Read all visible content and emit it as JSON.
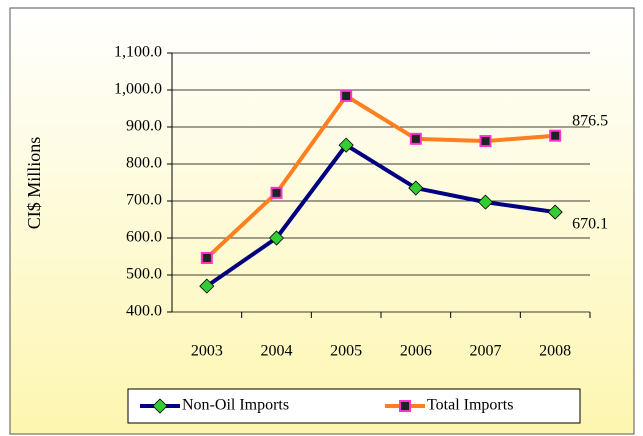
{
  "chart_data": {
    "type": "line",
    "ylabel": "CI$ Millions",
    "categories": [
      "2003",
      "2004",
      "2005",
      "2006",
      "2007",
      "2008"
    ],
    "series": [
      {
        "name": "Non-Oil Imports",
        "color": "#000080",
        "marker_color": "#33cc33",
        "marker": "diamond",
        "values": [
          470,
          600,
          851,
          735,
          697,
          670.1
        ],
        "value_labels": [
          null,
          null,
          null,
          null,
          null,
          "670.1"
        ]
      },
      {
        "name": "Total Imports",
        "color": "#ff7f1f",
        "marker_color": "#ff33cc",
        "marker": "square",
        "values": [
          546,
          722,
          984,
          868,
          862,
          876.5
        ],
        "value_labels": [
          null,
          null,
          null,
          null,
          null,
          "876.5"
        ]
      }
    ],
    "ylim": [
      400,
      1100
    ],
    "yticks": [
      {
        "value": 400,
        "label": "400.0"
      },
      {
        "value": 500,
        "label": "500.0"
      },
      {
        "value": 600,
        "label": "600.0"
      },
      {
        "value": 700,
        "label": "700.0"
      },
      {
        "value": 800,
        "label": "800.0"
      },
      {
        "value": 900,
        "label": "900.0"
      },
      {
        "value": 1000,
        "label": "1,000.0"
      },
      {
        "value": 1100,
        "label": "1,100.0"
      }
    ],
    "grid": true,
    "legend": "bottom"
  }
}
